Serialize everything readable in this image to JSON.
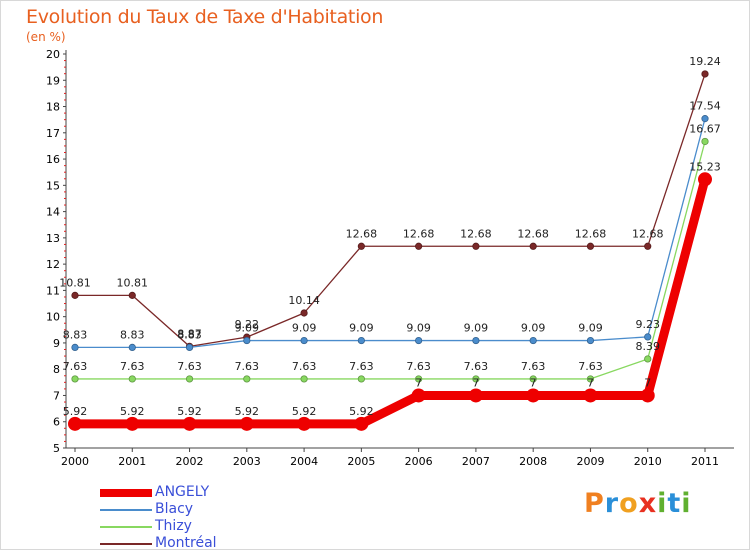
{
  "header": {
    "title": "Evolution du Taux de Taxe d'Habitation",
    "subtitle": "(en %)"
  },
  "logo": {
    "text": "Proxiti",
    "letters": [
      "P",
      "r",
      "o",
      "x",
      "i",
      "t",
      "i"
    ],
    "colors": [
      "#f08020",
      "#2a8fd8",
      "#f0a020",
      "#e83020",
      "#60b030",
      "#2a8fd8",
      "#60b030"
    ]
  },
  "chart_data": {
    "type": "line",
    "title": "Evolution du Taux de Taxe d'Habitation",
    "subtitle": "(en %)",
    "xlabel": "",
    "ylabel": "",
    "x": [
      "2000",
      "2001",
      "2002",
      "2003",
      "2004",
      "2005",
      "2006",
      "2007",
      "2008",
      "2009",
      "2010",
      "2011"
    ],
    "ylim": [
      5,
      20
    ],
    "yticks": [
      "5",
      "6",
      "7",
      "8",
      "9",
      "10",
      "11",
      "12",
      "13",
      "14",
      "15",
      "16",
      "17",
      "18",
      "19",
      "20"
    ],
    "grid": false,
    "legend_position": "bottom-left",
    "series": [
      {
        "name": "ANGELY",
        "color": "#ee0000",
        "values": [
          5.92,
          5.92,
          5.92,
          5.92,
          5.92,
          5.92,
          7,
          7,
          7,
          7,
          7,
          15.23
        ],
        "labels": [
          "5.92",
          "5.92",
          "5.92",
          "5.92",
          "5.92",
          "5.92",
          "7",
          "7",
          "7",
          "7",
          "7",
          "15.23"
        ]
      },
      {
        "name": "Blacy",
        "color": "#4a8ccc",
        "values": [
          8.83,
          8.83,
          8.83,
          9.09,
          9.09,
          9.09,
          9.09,
          9.09,
          9.09,
          9.09,
          9.23,
          17.54
        ],
        "labels": [
          "8.83",
          "8.83",
          "8.83",
          "9.09",
          "9.09",
          "9.09",
          "9.09",
          "9.09",
          "9.09",
          "9.09",
          "9.23",
          "17.54"
        ]
      },
      {
        "name": "Thizy",
        "color": "#88d860",
        "values": [
          7.63,
          7.63,
          7.63,
          7.63,
          7.63,
          7.63,
          7.63,
          7.63,
          7.63,
          7.63,
          8.39,
          16.67
        ],
        "labels": [
          "7.63",
          "7.63",
          "7.63",
          "7.63",
          "7.63",
          "7.63",
          "7.63",
          "7.63",
          "7.63",
          "7.63",
          "8.39",
          "16.67"
        ]
      },
      {
        "name": "Montréal",
        "color": "#7a2828",
        "values": [
          10.81,
          10.81,
          8.87,
          9.22,
          10.14,
          12.68,
          12.68,
          12.68,
          12.68,
          12.68,
          12.68,
          19.24
        ],
        "labels": [
          "10.81",
          "10.81",
          "8.87",
          "9.22",
          "10.14",
          "12.68",
          "12.68",
          "12.68",
          "12.68",
          "12.68",
          "12.68",
          "19.24"
        ]
      }
    ]
  }
}
